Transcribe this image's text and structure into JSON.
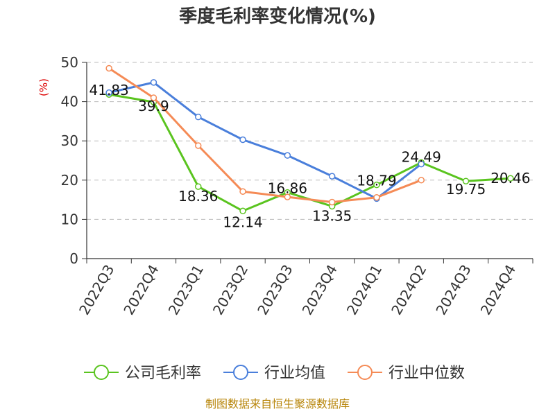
{
  "chart_data": {
    "type": "line",
    "title": "季度毛利率变化情况(%)",
    "ylabel": "(%)",
    "categories": [
      "2022Q3",
      "2022Q4",
      "2023Q1",
      "2023Q2",
      "2023Q3",
      "2023Q4",
      "2024Q1",
      "2024Q2",
      "2024Q3",
      "2024Q4"
    ],
    "yticks": [
      "0",
      "10",
      "20",
      "30",
      "40",
      "50"
    ],
    "ylim": [
      0,
      50
    ],
    "grid": "horizontal-dashed",
    "legend_position": "bottom",
    "series": [
      {
        "name": "公司毛利率",
        "color": "#5ac41f",
        "values": [
          41.83,
          39.9,
          18.36,
          12.14,
          16.86,
          13.35,
          18.79,
          24.49,
          19.75,
          20.46
        ],
        "labels": [
          "41.83",
          "39.9",
          "18.36",
          "12.14",
          "16.86",
          "13.35",
          "18.79",
          "24.49",
          "19.75",
          "20.46"
        ]
      },
      {
        "name": "行业均值",
        "color": "#4a7fdb",
        "values": [
          42.3,
          44.9,
          36.1,
          30.3,
          26.3,
          21.0,
          15.3,
          24.1,
          null,
          null
        ]
      },
      {
        "name": "行业中位数",
        "color": "#f58b56",
        "values": [
          48.5,
          41.0,
          28.8,
          17.1,
          15.7,
          14.4,
          15.6,
          20.0,
          null,
          null
        ]
      }
    ]
  },
  "source": "制图数据来自恒生聚源数据库"
}
